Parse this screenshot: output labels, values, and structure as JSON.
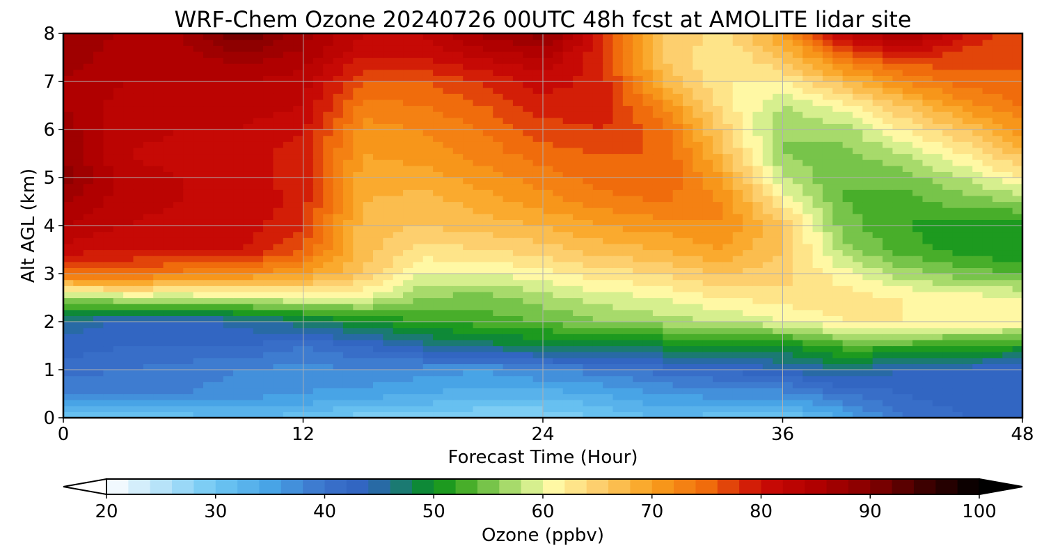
{
  "chart_data": {
    "type": "heatmap",
    "title": "WRF-Chem Ozone  20240726 00UTC 48h fcst at AMOLITE lidar site",
    "xlabel": "Forecast Time (Hour)",
    "ylabel": "Alt AGL (km)",
    "xlim": [
      0,
      48
    ],
    "ylim": [
      0,
      8
    ],
    "x_ticks": [
      0,
      12,
      24,
      36,
      48
    ],
    "y_ticks": [
      0,
      1,
      2,
      3,
      4,
      5,
      6,
      7,
      8
    ],
    "grid": true,
    "x": [
      0,
      3,
      6,
      9,
      12,
      15,
      18,
      21,
      24,
      27,
      30,
      33,
      36,
      39,
      42,
      45,
      48
    ],
    "y": [
      0,
      0.5,
      1,
      1.5,
      2,
      2.5,
      3,
      3.5,
      4,
      4.5,
      5,
      5.5,
      6,
      6.5,
      7,
      7.5,
      8
    ],
    "z": [
      [
        30,
        31,
        31,
        32,
        31,
        29,
        29,
        28,
        28,
        30,
        32,
        31,
        30,
        34,
        40,
        42,
        42
      ],
      [
        38,
        38,
        38,
        37,
        36,
        35,
        34,
        33,
        33,
        34,
        36,
        37,
        37,
        40,
        42,
        43,
        42
      ],
      [
        41,
        40,
        39,
        38,
        37,
        38,
        37,
        36,
        38,
        39,
        41,
        42,
        44,
        46,
        44,
        43,
        42
      ],
      [
        43,
        42,
        42,
        42,
        40,
        42,
        45,
        47,
        48,
        49,
        49,
        49,
        50,
        53,
        53,
        52,
        51
      ],
      [
        46,
        43,
        43,
        45,
        47,
        50,
        52,
        53,
        54,
        56,
        57,
        58,
        60,
        62,
        62,
        62,
        62
      ],
      [
        56,
        58,
        58,
        59,
        60,
        60,
        56,
        55,
        57,
        59,
        60,
        62,
        63,
        63,
        62,
        61,
        60
      ],
      [
        75,
        75,
        73,
        72,
        70,
        66,
        60,
        60,
        61,
        63,
        64,
        66,
        65,
        61,
        57,
        55,
        54
      ],
      [
        81,
        80,
        80,
        80,
        76,
        67,
        63,
        64,
        65,
        67,
        68,
        70,
        66,
        57,
        53,
        51,
        50
      ],
      [
        84,
        82,
        81,
        81,
        78,
        67,
        66,
        67,
        68,
        70,
        71,
        72,
        66,
        55,
        52,
        51,
        51
      ],
      [
        86,
        83,
        82,
        82,
        79,
        68,
        67,
        69,
        71,
        73,
        74,
        72,
        62,
        54,
        53,
        55,
        56
      ],
      [
        89,
        83,
        82,
        81,
        79,
        69,
        69,
        71,
        73,
        75,
        76,
        70,
        58,
        54,
        55,
        58,
        62
      ],
      [
        88,
        82,
        81,
        81,
        79,
        70,
        71,
        73,
        75,
        76,
        76,
        67,
        56,
        55,
        58,
        62,
        67
      ],
      [
        87,
        83,
        82,
        82,
        80,
        71,
        72,
        74,
        77,
        78,
        75,
        65,
        56,
        57,
        62,
        66,
        71
      ],
      [
        86,
        83,
        82,
        83,
        82,
        73,
        74,
        76,
        79,
        79,
        72,
        63,
        58,
        61,
        66,
        71,
        74
      ],
      [
        86,
        84,
        84,
        84,
        83,
        76,
        76,
        78,
        81,
        79,
        68,
        62,
        62,
        67,
        72,
        75,
        76
      ],
      [
        87,
        85,
        85,
        87,
        85,
        80,
        80,
        82,
        84,
        78,
        66,
        62,
        66,
        74,
        78,
        77,
        76
      ],
      [
        87,
        86,
        86,
        92,
        87,
        82,
        82,
        87,
        89,
        79,
        66,
        63,
        70,
        82,
        87,
        80,
        76
      ]
    ],
    "colorbar": {
      "label": "Ozone  (ppbv)",
      "min": 20,
      "max": 100,
      "step": 2,
      "ticks": [
        20,
        30,
        40,
        50,
        60,
        70,
        80,
        90,
        100
      ],
      "extend": "both",
      "stops": [
        [
          20,
          "#ffffff"
        ],
        [
          30,
          "#6fc7f3"
        ],
        [
          35,
          "#48a4e6"
        ],
        [
          40,
          "#3b72cb"
        ],
        [
          44,
          "#2f62bf"
        ],
        [
          47,
          "#1b7a72"
        ],
        [
          50,
          "#07901a"
        ],
        [
          53,
          "#48ae2a"
        ],
        [
          56,
          "#8fcf5a"
        ],
        [
          59,
          "#d6ef8e"
        ],
        [
          61,
          "#fff8a4"
        ],
        [
          65,
          "#fdcf6e"
        ],
        [
          70,
          "#f9a11e"
        ],
        [
          75,
          "#f06c0c"
        ],
        [
          80,
          "#cc0b06"
        ],
        [
          85,
          "#b00000"
        ],
        [
          90,
          "#850000"
        ],
        [
          95,
          "#3d0000"
        ],
        [
          100,
          "#000000"
        ]
      ]
    }
  }
}
